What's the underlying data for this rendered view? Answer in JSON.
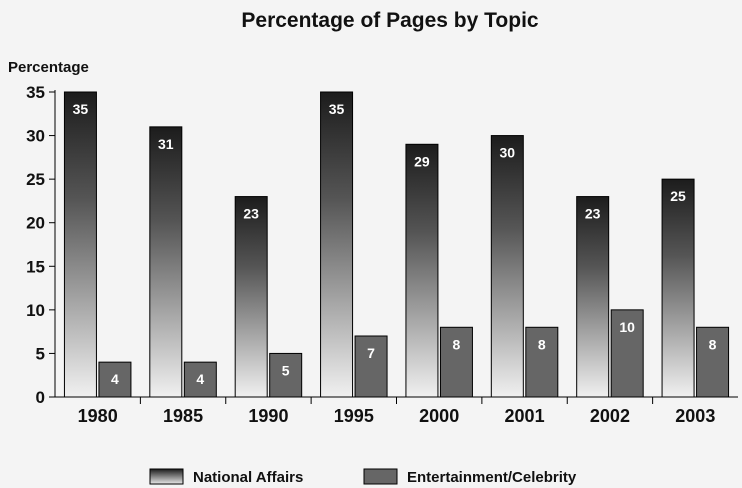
{
  "chart_data": {
    "type": "bar",
    "title": "Percentage of Pages by Topic",
    "ylabel": "Percentage",
    "xlabel": "",
    "categories": [
      "1980",
      "1985",
      "1990",
      "1995",
      "2000",
      "2001",
      "2002",
      "2003"
    ],
    "series": [
      {
        "name": "National Affairs",
        "values": [
          35,
          31,
          23,
          35,
          29,
          30,
          23,
          25
        ],
        "color": "#1e1e1e",
        "style": "vertical-gradient-dark-to-light"
      },
      {
        "name": "Entertainment/Celebrity",
        "values": [
          4,
          4,
          5,
          7,
          8,
          8,
          10,
          8
        ],
        "color": "#666666"
      }
    ],
    "ylim": [
      0,
      35
    ],
    "yticks": [
      0,
      5,
      10,
      15,
      20,
      25,
      30,
      35
    ],
    "grid": false,
    "legend": "bottom-center",
    "data_labels": true
  }
}
